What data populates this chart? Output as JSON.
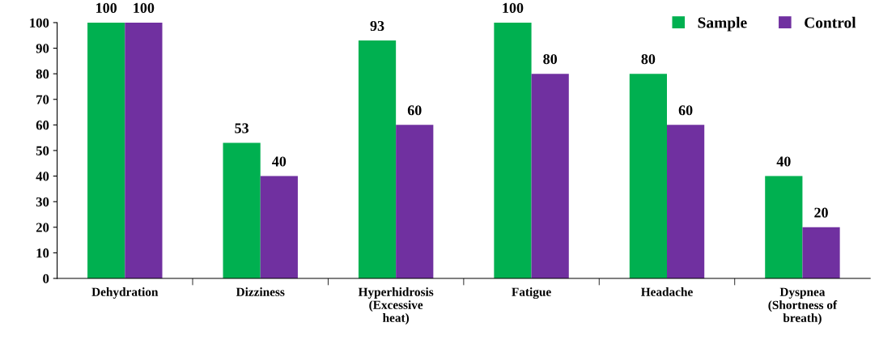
{
  "chart_data": {
    "type": "bar",
    "categories": [
      "Dehydration",
      "Dizziness",
      "Hyperhidrosis\n(Excessive\nheat)",
      "Fatigue",
      "Headache",
      "Dyspnea\n(Shortness of\nbreath)"
    ],
    "series": [
      {
        "name": "Sample",
        "color": "#00b050",
        "values": [
          100,
          53,
          93,
          100,
          80,
          40
        ]
      },
      {
        "name": "Control",
        "color": "#7030a0",
        "values": [
          100,
          40,
          60,
          80,
          60,
          20
        ]
      }
    ],
    "ylim": [
      0,
      100
    ],
    "yticks": [
      0,
      10,
      20,
      30,
      40,
      50,
      60,
      70,
      80,
      90,
      100
    ],
    "data_labels": true,
    "legend": "top right",
    "grid": false
  }
}
